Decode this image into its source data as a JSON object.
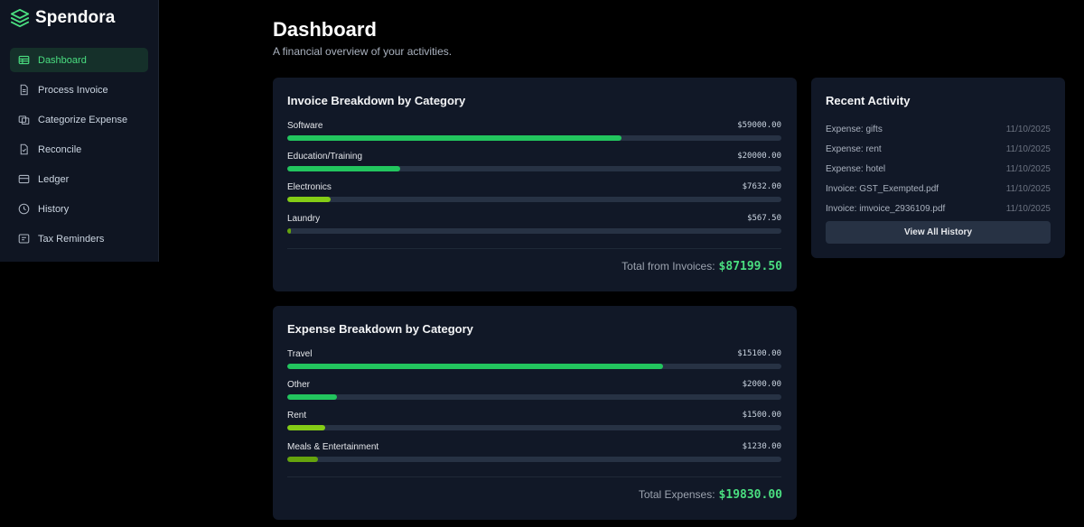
{
  "brand": {
    "name": "Spendora",
    "logo_icon": "layers-icon",
    "accent": "#4ade80"
  },
  "sidebar": {
    "items": [
      {
        "label": "Dashboard",
        "icon": "dashboard-icon",
        "active": true
      },
      {
        "label": "Process Invoice",
        "icon": "file-icon",
        "active": false
      },
      {
        "label": "Categorize Expense",
        "icon": "copy-icon",
        "active": false
      },
      {
        "label": "Reconcile",
        "icon": "file-check-icon",
        "active": false
      },
      {
        "label": "Ledger",
        "icon": "card-icon",
        "active": false
      },
      {
        "label": "History",
        "icon": "clock-icon",
        "active": false
      },
      {
        "label": "Tax Reminders",
        "icon": "receipt-icon",
        "active": false
      }
    ]
  },
  "header": {
    "title": "Dashboard",
    "subtitle": "A financial overview of your activities."
  },
  "invoice_card": {
    "title": "Invoice Breakdown by Category",
    "categories": [
      {
        "name": "Software",
        "value": "$59000.00",
        "fraction": 0.676,
        "color": "#22c55e"
      },
      {
        "name": "Education/Training",
        "value": "$20000.00",
        "fraction": 0.229,
        "color": "#22c55e"
      },
      {
        "name": "Electronics",
        "value": "$7632.00",
        "fraction": 0.088,
        "color": "#84cc16"
      },
      {
        "name": "Laundry",
        "value": "$567.50",
        "fraction": 0.0065,
        "color": "#65a30d"
      }
    ],
    "total_label": "Total from Invoices:",
    "total_value": "$87199.50"
  },
  "expense_card": {
    "title": "Expense Breakdown by Category",
    "categories": [
      {
        "name": "Travel",
        "value": "$15100.00",
        "fraction": 0.761,
        "color": "#22c55e"
      },
      {
        "name": "Other",
        "value": "$2000.00",
        "fraction": 0.101,
        "color": "#22c55e"
      },
      {
        "name": "Rent",
        "value": "$1500.00",
        "fraction": 0.076,
        "color": "#84cc16"
      },
      {
        "name": "Meals & Entertainment",
        "value": "$1230.00",
        "fraction": 0.062,
        "color": "#65a30d"
      }
    ],
    "total_label": "Total Expenses:",
    "total_value": "$19830.00"
  },
  "activity": {
    "title": "Recent Activity",
    "items": [
      {
        "text": "Expense: gifts",
        "date": "11/10/2025"
      },
      {
        "text": "Expense: rent",
        "date": "11/10/2025"
      },
      {
        "text": "Expense: hotel",
        "date": "11/10/2025"
      },
      {
        "text": "Invoice: GST_Exempted.pdf",
        "date": "11/10/2025"
      },
      {
        "text": "Invoice: imvoice_2936109.pdf",
        "date": "11/10/2025"
      }
    ],
    "button_label": "View All History"
  }
}
